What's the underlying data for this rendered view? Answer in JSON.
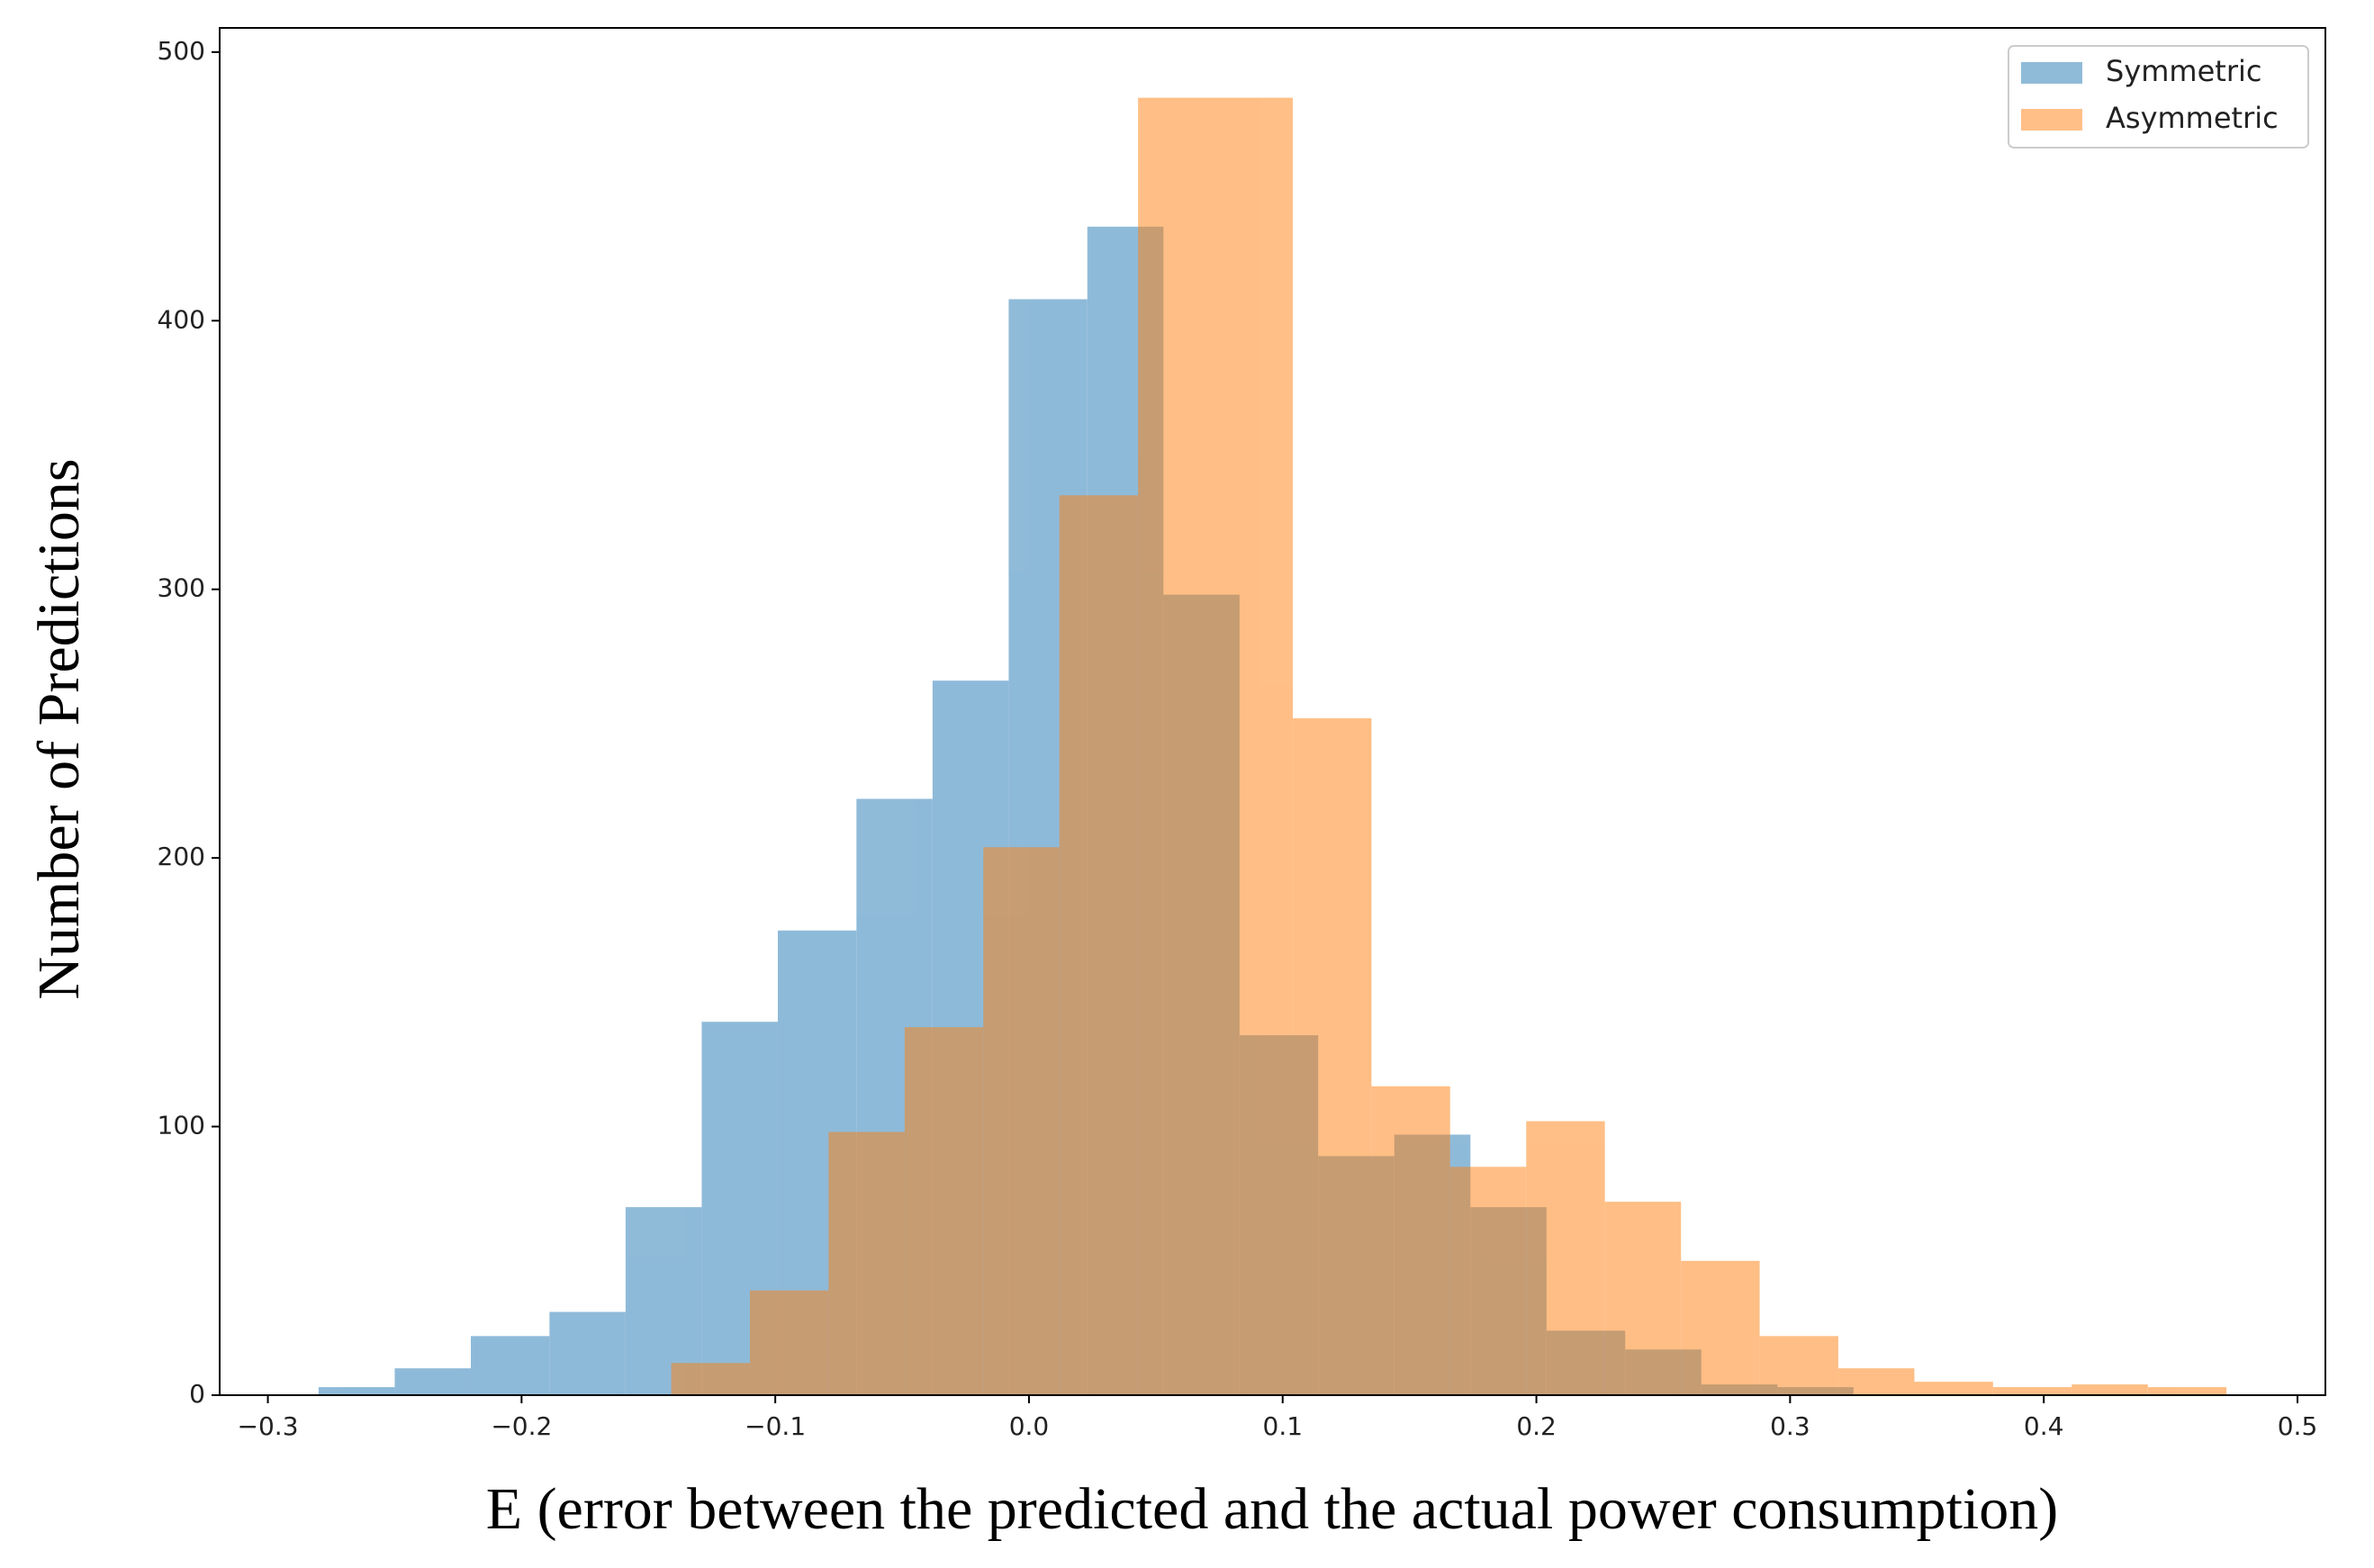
{
  "chart_data": {
    "type": "histogram",
    "x_label": "E (error between the predicted and the actual power consumption)",
    "y_label": "Number of Predictions",
    "xlim": [
      -0.319,
      0.511
    ],
    "ylim": [
      0,
      509
    ],
    "xticks": [
      {
        "value": -0.3,
        "label": "−0.3"
      },
      {
        "value": -0.2,
        "label": "−0.2"
      },
      {
        "value": -0.1,
        "label": "−0.1"
      },
      {
        "value": 0,
        "label": "0.0"
      },
      0.1,
      0.2,
      0.3,
      0.4,
      0.5
    ],
    "yticks": [
      0,
      100,
      200,
      300,
      400,
      500
    ],
    "legend": "upper right",
    "opacity": 0.5,
    "series": [
      {
        "name": "Symmetric",
        "color": "#1f77b4",
        "bins": [
          -0.28,
          -0.25,
          -0.22,
          -0.189,
          -0.159,
          -0.129,
          -0.099,
          -0.068,
          -0.038,
          -0.008,
          0.023,
          0.053,
          0.083,
          0.114,
          0.144,
          0.174,
          0.204,
          0.235,
          0.265,
          0.295,
          0.325
        ],
        "values": [
          3,
          10,
          22,
          31,
          70,
          139,
          173,
          222,
          266,
          408,
          435,
          298,
          134,
          89,
          97,
          70,
          24,
          17,
          4,
          3
        ]
      },
      {
        "name": "Asymmetric",
        "color": "#ff7f0e",
        "bins": [
          -0.141,
          -0.11,
          -0.079,
          -0.049,
          -0.018,
          0.012,
          0.043,
          0.074,
          0.104,
          0.135,
          0.166,
          0.196,
          0.227,
          0.257,
          0.288,
          0.319,
          0.349,
          0.38,
          0.411,
          0.441,
          0.472
        ],
        "values": [
          12,
          39,
          98,
          137,
          204,
          335,
          483,
          483,
          252,
          115,
          85,
          102,
          72,
          50,
          22,
          10,
          5,
          3,
          4,
          3
        ]
      }
    ]
  }
}
